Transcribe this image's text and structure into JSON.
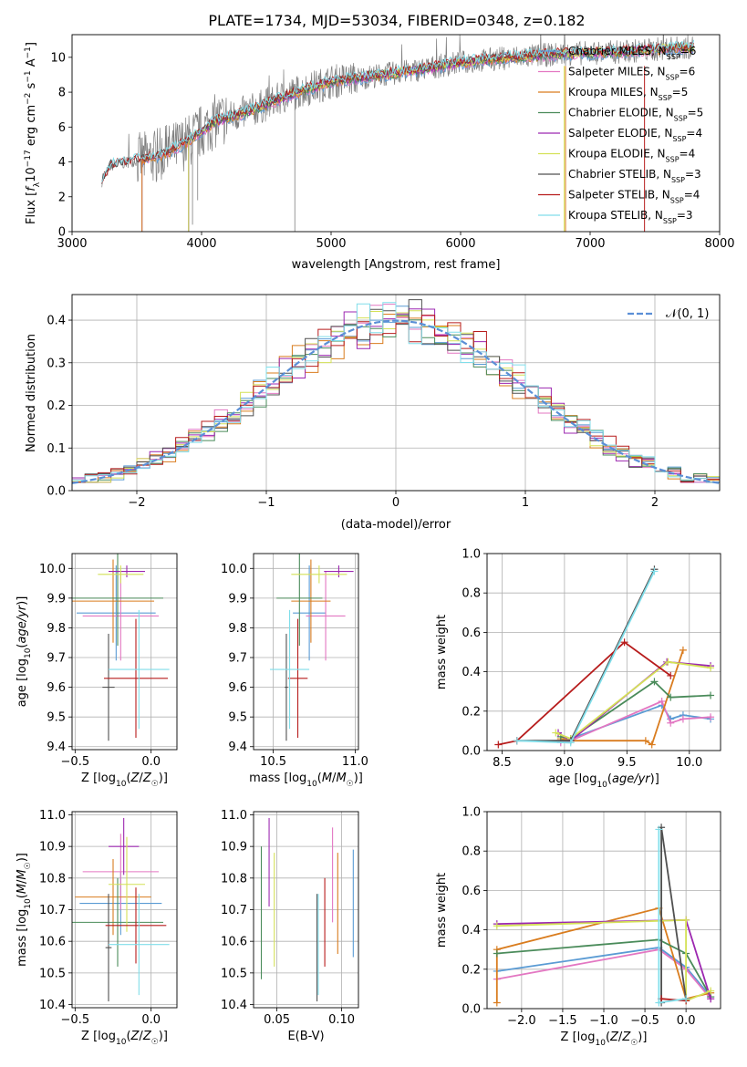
{
  "figure_title": "PLATE=1734, MJD=53034, FIBERID=0348, z=0.182",
  "colors": {
    "Chabrier MILES": "#5a9bd4",
    "Salpeter MILES": "#e377c2",
    "Kroupa MILES": "#d97c1e",
    "Chabrier ELODIE": "#4a8b5a",
    "Salpeter ELODIE": "#9c27b0",
    "Kroupa ELODIE": "#d4e157",
    "Chabrier STELIB": "#505050",
    "Salpeter STELIB": "#b71c1c",
    "Kroupa STELIB": "#80deea",
    "normal": "#5b8fd6",
    "grid": "#b0b0b0"
  },
  "chart_data": [
    {
      "id": "spectrum",
      "type": "line",
      "xlabel": "wavelength [Angstrom, rest frame]",
      "ylabel": "Flux [f_λ 10^-17 erg cm^-2 s^-1 A^-1]",
      "xlim": [
        3000,
        8000
      ],
      "ylim": [
        0,
        11.3
      ],
      "xticks": [
        3000,
        4000,
        5000,
        6000,
        7000,
        8000
      ],
      "yticks": [
        0,
        2,
        4,
        6,
        8,
        10
      ],
      "legend_position": "top-right",
      "data_range": [
        3230,
        7800
      ],
      "continuum": [
        [
          3230,
          2.9
        ],
        [
          3300,
          3.8
        ],
        [
          3500,
          4.1
        ],
        [
          3700,
          4.4
        ],
        [
          3900,
          5.2
        ],
        [
          4100,
          6.3
        ],
        [
          4400,
          7.0
        ],
        [
          4700,
          7.9
        ],
        [
          5000,
          8.6
        ],
        [
          5300,
          8.9
        ],
        [
          5600,
          9.2
        ],
        [
          6000,
          9.7
        ],
        [
          6400,
          10.0
        ],
        [
          6800,
          10.2
        ],
        [
          7200,
          10.3
        ],
        [
          7600,
          10.5
        ],
        [
          7800,
          10.6
        ]
      ],
      "series": [
        {
          "label": "Chabrier MILES, N",
          "sub": "SSP",
          "n": "6",
          "color": "#5a9bd4",
          "start": 3540
        },
        {
          "label": "Salpeter MILES, N",
          "sub": "SSP",
          "n": "6",
          "color": "#e377c2",
          "start": 3540
        },
        {
          "label": "Kroupa MILES, N",
          "sub": "SSP",
          "n": "5",
          "color": "#d97c1e",
          "start": 3540
        },
        {
          "label": "Chabrier ELODIE, N",
          "sub": "SSP",
          "n": "5",
          "color": "#4a8b5a",
          "start": 3900
        },
        {
          "label": "Salpeter ELODIE, N",
          "sub": "SSP",
          "n": "4",
          "color": "#9c27b0",
          "start": 3900
        },
        {
          "label": "Kroupa ELODIE, N",
          "sub": "SSP",
          "n": "4",
          "color": "#d4e157",
          "start": 3900
        },
        {
          "label": "Chabrier STELIB, N",
          "sub": "SSP",
          "n": "3",
          "color": "#505050",
          "start": 3230
        },
        {
          "label": "Salpeter STELIB, N",
          "sub": "SSP",
          "n": "4",
          "color": "#b71c1c",
          "start": 3230
        },
        {
          "label": "Kroupa STELIB, N",
          "sub": "SSP",
          "n": "3",
          "color": "#80deea",
          "start": 3230
        }
      ]
    },
    {
      "id": "residuals",
      "type": "histogram",
      "xlabel": "(data-model)/error",
      "ylabel": "Normed distribution",
      "xlim": [
        -2.5,
        2.5
      ],
      "ylim": [
        0,
        0.46
      ],
      "xticks": [
        -2,
        -1,
        0,
        1,
        2
      ],
      "yticks": [
        0.0,
        0.1,
        0.2,
        0.3,
        0.4
      ],
      "legend_label": "𝒩(0, 1)",
      "legend_position": "top-right",
      "bin_width": 0.1,
      "series_colors": [
        "#5a9bd4",
        "#e377c2",
        "#d97c1e",
        "#4a8b5a",
        "#9c27b0",
        "#d4e157",
        "#505050",
        "#b71c1c",
        "#80deea"
      ]
    },
    {
      "id": "age-vs-Z",
      "type": "errorbar",
      "xlabel": "Z [log10(Z/Z☉)]",
      "ylabel": "age [log10(age/yr)]",
      "xlim": [
        -0.52,
        0.17
      ],
      "ylim": [
        9.39,
        10.05
      ],
      "xticks": [
        -0.5,
        0.0
      ],
      "yticks": [
        9.4,
        9.5,
        9.6,
        9.7,
        9.8,
        9.9,
        10.0
      ],
      "points": [
        {
          "color": "#5a9bd4",
          "x": -0.23,
          "xerr": 0.26,
          "y": 9.85,
          "yerr": 0.16
        },
        {
          "color": "#e377c2",
          "x": -0.2,
          "xerr": 0.25,
          "y": 9.84,
          "yerr": 0.15
        },
        {
          "color": "#d97c1e",
          "x": -0.25,
          "xerr": 0.27,
          "y": 9.89,
          "yerr": 0.14
        },
        {
          "color": "#4a8b5a",
          "x": -0.22,
          "xerr": 0.3,
          "y": 9.9,
          "yerr": 0.16
        },
        {
          "color": "#9c27b0",
          "x": -0.16,
          "xerr": 0.12,
          "y": 9.99,
          "yerr": 0.02
        },
        {
          "color": "#d4e157",
          "x": -0.2,
          "xerr": 0.15,
          "y": 9.98,
          "yerr": 0.03
        },
        {
          "color": "#505050",
          "x": -0.28,
          "xerr": 0.04,
          "y": 9.6,
          "yerr": 0.18
        },
        {
          "color": "#b71c1c",
          "x": -0.1,
          "xerr": 0.21,
          "y": 9.63,
          "yerr": 0.2
        },
        {
          "color": "#80deea",
          "x": -0.08,
          "xerr": 0.2,
          "y": 9.66,
          "yerr": 0.2
        }
      ]
    },
    {
      "id": "age-vs-mass",
      "type": "errorbar",
      "xlabel": "mass [log10(M/M☉)]",
      "ylabel": "",
      "xlim": [
        10.38,
        11.02
      ],
      "ylim": [
        9.39,
        10.05
      ],
      "xticks": [
        10.5,
        11.0
      ],
      "yticks": [
        9.4,
        9.5,
        9.6,
        9.7,
        9.8,
        9.9,
        10.0
      ],
      "points": [
        {
          "color": "#5a9bd4",
          "x": 10.72,
          "xerr": 0.1,
          "y": 9.85,
          "yerr": 0.16
        },
        {
          "color": "#e377c2",
          "x": 10.82,
          "xerr": 0.12,
          "y": 9.84,
          "yerr": 0.15
        },
        {
          "color": "#d97c1e",
          "x": 10.73,
          "xerr": 0.12,
          "y": 9.89,
          "yerr": 0.14
        },
        {
          "color": "#4a8b5a",
          "x": 10.66,
          "xerr": 0.14,
          "y": 9.9,
          "yerr": 0.16
        },
        {
          "color": "#9c27b0",
          "x": 10.9,
          "xerr": 0.09,
          "y": 9.99,
          "yerr": 0.02
        },
        {
          "color": "#d4e157",
          "x": 10.78,
          "xerr": 0.17,
          "y": 9.98,
          "yerr": 0.03
        },
        {
          "color": "#505050",
          "x": 10.58,
          "xerr": 0.01,
          "y": 9.6,
          "yerr": 0.18
        },
        {
          "color": "#b71c1c",
          "x": 10.65,
          "xerr": 0.06,
          "y": 9.63,
          "yerr": 0.2
        },
        {
          "color": "#80deea",
          "x": 10.6,
          "xerr": 0.12,
          "y": 9.66,
          "yerr": 0.2
        }
      ]
    },
    {
      "id": "mass-weight-vs-age",
      "type": "line",
      "xlabel": "age [log10(age/yr)]",
      "ylabel": "mass weight",
      "xlim": [
        8.38,
        10.25
      ],
      "ylim": [
        0,
        1.0
      ],
      "xticks": [
        8.5,
        9.0,
        9.5,
        10.0
      ],
      "yticks": [
        0.0,
        0.2,
        0.4,
        0.6,
        0.8,
        1.0
      ],
      "series": [
        {
          "color": "#5a9bd4",
          "x": [
            8.97,
            9.05,
            9.78,
            9.85,
            9.95,
            10.17
          ],
          "y": [
            0.05,
            0.06,
            0.23,
            0.16,
            0.18,
            0.16
          ]
        },
        {
          "color": "#e377c2",
          "x": [
            8.97,
            9.05,
            9.78,
            9.85,
            9.95,
            10.17
          ],
          "y": [
            0.04,
            0.05,
            0.25,
            0.14,
            0.16,
            0.17
          ]
        },
        {
          "color": "#d97c1e",
          "x": [
            8.97,
            9.05,
            9.65,
            9.7,
            9.95
          ],
          "y": [
            0.06,
            0.05,
            0.05,
            0.03,
            0.51
          ]
        },
        {
          "color": "#4a8b5a",
          "x": [
            8.97,
            9.05,
            9.72,
            9.85,
            10.17
          ],
          "y": [
            0.07,
            0.06,
            0.35,
            0.27,
            0.28
          ]
        },
        {
          "color": "#9c27b0",
          "x": [
            8.95,
            9.05,
            9.82,
            10.17
          ],
          "y": [
            0.09,
            0.05,
            0.45,
            0.43
          ]
        },
        {
          "color": "#d4e157",
          "x": [
            8.93,
            9.05,
            9.83,
            10.17
          ],
          "y": [
            0.09,
            0.06,
            0.45,
            0.42
          ]
        },
        {
          "color": "#505050",
          "x": [
            8.62,
            9.05,
            9.72
          ],
          "y": [
            0.05,
            0.05,
            0.92
          ]
        },
        {
          "color": "#b71c1c",
          "x": [
            8.47,
            8.62,
            9.48,
            9.85
          ],
          "y": [
            0.03,
            0.05,
            0.55,
            0.38
          ]
        },
        {
          "color": "#80deea",
          "x": [
            8.62,
            9.05,
            9.72
          ],
          "y": [
            0.05,
            0.04,
            0.91
          ]
        }
      ]
    },
    {
      "id": "mass-vs-Z",
      "type": "errorbar",
      "xlabel": "Z [log10(Z/Z☉)]",
      "ylabel": "mass [log10(M/M☉)]",
      "xlim": [
        -0.52,
        0.17
      ],
      "ylim": [
        10.39,
        11.01
      ],
      "xticks": [
        -0.5,
        0.0
      ],
      "yticks": [
        10.4,
        10.5,
        10.6,
        10.7,
        10.8,
        10.9,
        11.0
      ],
      "points": [
        {
          "color": "#5a9bd4",
          "x": -0.2,
          "xerr": 0.27,
          "y": 10.72,
          "yerr": 0.1
        },
        {
          "color": "#e377c2",
          "x": -0.2,
          "xerr": 0.25,
          "y": 10.82,
          "yerr": 0.12
        },
        {
          "color": "#d97c1e",
          "x": -0.25,
          "xerr": 0.25,
          "y": 10.74,
          "yerr": 0.12
        },
        {
          "color": "#4a8b5a",
          "x": -0.22,
          "xerr": 0.3,
          "y": 10.66,
          "yerr": 0.14
        },
        {
          "color": "#9c27b0",
          "x": -0.18,
          "xerr": 0.1,
          "y": 10.9,
          "yerr": 0.09
        },
        {
          "color": "#d4e157",
          "x": -0.16,
          "xerr": 0.12,
          "y": 10.78,
          "yerr": 0.15
        },
        {
          "color": "#505050",
          "x": -0.28,
          "xerr": 0.02,
          "y": 10.58,
          "yerr": 0.17
        },
        {
          "color": "#b71c1c",
          "x": -0.1,
          "xerr": 0.2,
          "y": 10.65,
          "yerr": 0.12
        },
        {
          "color": "#80deea",
          "x": -0.08,
          "xerr": 0.2,
          "y": 10.59,
          "yerr": 0.16
        }
      ]
    },
    {
      "id": "mass-vs-ebv",
      "type": "errorbar",
      "xlabel": "E(B-V)",
      "ylabel": "",
      "xlim": [
        0.032,
        0.113
      ],
      "ylim": [
        10.39,
        11.01
      ],
      "xticks": [
        0.05,
        0.1
      ],
      "yticks": [
        10.4,
        10.5,
        10.6,
        10.7,
        10.8,
        10.9,
        11.0
      ],
      "points": [
        {
          "color": "#5a9bd4",
          "x": 0.109,
          "y": 10.72,
          "yerr": 0.17
        },
        {
          "color": "#e377c2",
          "x": 0.093,
          "y": 10.81,
          "yerr": 0.15
        },
        {
          "color": "#d97c1e",
          "x": 0.097,
          "y": 10.72,
          "yerr": 0.16
        },
        {
          "color": "#4a8b5a",
          "x": 0.038,
          "y": 10.69,
          "yerr": 0.21
        },
        {
          "color": "#9c27b0",
          "x": 0.044,
          "y": 10.85,
          "yerr": 0.14
        },
        {
          "color": "#d4e157",
          "x": 0.048,
          "y": 10.7,
          "yerr": 0.18
        },
        {
          "color": "#505050",
          "x": 0.081,
          "y": 10.58,
          "yerr": 0.17
        },
        {
          "color": "#b71c1c",
          "x": 0.087,
          "y": 10.66,
          "yerr": 0.14
        },
        {
          "color": "#80deea",
          "x": 0.082,
          "y": 10.59,
          "yerr": 0.16
        }
      ]
    },
    {
      "id": "mass-weight-vs-Z",
      "type": "line",
      "xlabel": "Z [log10(Z/Z☉)]",
      "ylabel": "mass weight",
      "xlim": [
        -2.42,
        0.42
      ],
      "ylim": [
        0,
        1.0
      ],
      "xticks": [
        -2.0,
        -1.5,
        -1.0,
        -0.5,
        0.0
      ],
      "yticks": [
        0.0,
        0.2,
        0.4,
        0.6,
        0.8,
        1.0
      ],
      "series": [
        {
          "color": "#5a9bd4",
          "x": [
            -2.3,
            -0.33,
            0.0,
            0.3
          ],
          "y": [
            0.19,
            0.31,
            0.21,
            0.06
          ]
        },
        {
          "color": "#e377c2",
          "x": [
            -2.3,
            -0.33,
            0.0,
            0.3
          ],
          "y": [
            0.15,
            0.3,
            0.2,
            0.05
          ]
        },
        {
          "color": "#d97c1e",
          "x": [
            -2.3,
            -2.3,
            -0.33,
            0.0,
            0.3
          ],
          "y": [
            0.03,
            0.3,
            0.51,
            0.05,
            0.08
          ]
        },
        {
          "color": "#4a8b5a",
          "x": [
            -2.3,
            -0.33,
            0.0,
            0.3
          ],
          "y": [
            0.28,
            0.35,
            0.28,
            0.06
          ]
        },
        {
          "color": "#9c27b0",
          "x": [
            -2.3,
            0.0,
            0.3
          ],
          "y": [
            0.43,
            0.45,
            0.05
          ]
        },
        {
          "color": "#d4e157",
          "x": [
            -2.3,
            0.0,
            0.0,
            0.3
          ],
          "y": [
            0.42,
            0.45,
            0.04,
            0.09
          ]
        },
        {
          "color": "#505050",
          "x": [
            -0.3,
            -0.3,
            0.0
          ],
          "y": [
            0.03,
            0.92,
            0.05
          ]
        },
        {
          "color": "#b71c1c",
          "x": [
            -0.3,
            0.0
          ],
          "y": [
            0.05,
            0.04
          ]
        },
        {
          "color": "#80deea",
          "x": [
            -0.33,
            -0.33,
            0.0
          ],
          "y": [
            0.91,
            0.03,
            0.05
          ]
        }
      ]
    }
  ]
}
